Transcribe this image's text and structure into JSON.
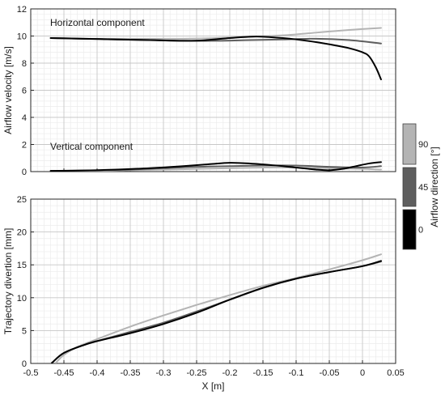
{
  "chart_data": [
    {
      "type": "line",
      "xlabel": "",
      "ylabel": "Airflow velocity [m/s]",
      "xlim": [
        -0.5,
        0.05
      ],
      "ylim": [
        0,
        12
      ],
      "xticks": [
        -0.5,
        -0.45,
        -0.4,
        -0.35,
        -0.3,
        -0.25,
        -0.2,
        -0.15,
        -0.1,
        -0.05,
        0,
        0.05
      ],
      "yticks": [
        0,
        2,
        4,
        6,
        8,
        10,
        12
      ],
      "xtick_labels_shown": false,
      "grid": "major and minor",
      "annotations": [
        "Horizontal component",
        "Vertical component"
      ],
      "series": [
        {
          "group": "horizontal",
          "direction": 90,
          "color": "#b4b4b4",
          "points": [
            [
              -0.47,
              9.85
            ],
            [
              -0.42,
              9.8
            ],
            [
              -0.37,
              9.8
            ],
            [
              -0.32,
              9.8
            ],
            [
              -0.27,
              9.8
            ],
            [
              -0.22,
              9.85
            ],
            [
              -0.17,
              9.95
            ],
            [
              -0.12,
              10.05
            ],
            [
              -0.07,
              10.25
            ],
            [
              -0.02,
              10.45
            ],
            [
              0.028,
              10.6
            ]
          ]
        },
        {
          "group": "horizontal",
          "direction": 45,
          "color": "#5e5e5e",
          "points": [
            [
              -0.47,
              9.85
            ],
            [
              -0.42,
              9.8
            ],
            [
              -0.37,
              9.75
            ],
            [
              -0.32,
              9.7
            ],
            [
              -0.27,
              9.65
            ],
            [
              -0.22,
              9.65
            ],
            [
              -0.17,
              9.7
            ],
            [
              -0.12,
              9.75
            ],
            [
              -0.07,
              9.8
            ],
            [
              -0.02,
              9.7
            ],
            [
              0.028,
              9.45
            ]
          ]
        },
        {
          "group": "horizontal",
          "direction": 0,
          "color": "#000000",
          "points": [
            [
              -0.47,
              9.85
            ],
            [
              -0.42,
              9.8
            ],
            [
              -0.37,
              9.75
            ],
            [
              -0.32,
              9.7
            ],
            [
              -0.27,
              9.65
            ],
            [
              -0.24,
              9.68
            ],
            [
              -0.2,
              9.85
            ],
            [
              -0.17,
              9.95
            ],
            [
              -0.15,
              9.95
            ],
            [
              -0.12,
              9.85
            ],
            [
              -0.1,
              9.75
            ],
            [
              -0.07,
              9.55
            ],
            [
              -0.04,
              9.3
            ],
            [
              -0.02,
              9.1
            ],
            [
              0.0,
              8.8
            ],
            [
              0.01,
              8.5
            ],
            [
              0.02,
              7.7
            ],
            [
              0.028,
              6.8
            ]
          ]
        },
        {
          "group": "vertical",
          "direction": 90,
          "color": "#b4b4b4",
          "points": [
            [
              -0.47,
              0.05
            ],
            [
              -0.4,
              0.05
            ],
            [
              -0.35,
              0.1
            ],
            [
              -0.3,
              0.15
            ],
            [
              -0.25,
              0.2
            ],
            [
              -0.2,
              0.25
            ],
            [
              -0.15,
              0.3
            ],
            [
              -0.1,
              0.3
            ],
            [
              -0.05,
              0.25
            ],
            [
              0.0,
              0.2
            ],
            [
              0.028,
              0.15
            ]
          ]
        },
        {
          "group": "vertical",
          "direction": 45,
          "color": "#5e5e5e",
          "points": [
            [
              -0.47,
              0.05
            ],
            [
              -0.4,
              0.1
            ],
            [
              -0.35,
              0.15
            ],
            [
              -0.3,
              0.25
            ],
            [
              -0.25,
              0.35
            ],
            [
              -0.2,
              0.4
            ],
            [
              -0.15,
              0.45
            ],
            [
              -0.1,
              0.45
            ],
            [
              -0.05,
              0.35
            ],
            [
              0.0,
              0.3
            ],
            [
              0.028,
              0.4
            ]
          ]
        },
        {
          "group": "vertical",
          "direction": 0,
          "color": "#000000",
          "points": [
            [
              -0.47,
              0.05
            ],
            [
              -0.42,
              0.08
            ],
            [
              -0.37,
              0.15
            ],
            [
              -0.32,
              0.25
            ],
            [
              -0.27,
              0.4
            ],
            [
              -0.23,
              0.55
            ],
            [
              -0.2,
              0.65
            ],
            [
              -0.17,
              0.6
            ],
            [
              -0.13,
              0.45
            ],
            [
              -0.1,
              0.3
            ],
            [
              -0.07,
              0.15
            ],
            [
              -0.05,
              0.1
            ],
            [
              -0.03,
              0.2
            ],
            [
              -0.01,
              0.4
            ],
            [
              0.01,
              0.6
            ],
            [
              0.028,
              0.7
            ]
          ]
        }
      ]
    },
    {
      "type": "line",
      "xlabel": "X [m]",
      "ylabel": "Trajectory divertion [mm]",
      "xlim": [
        -0.5,
        0.05
      ],
      "ylim": [
        0,
        25
      ],
      "xticks": [
        -0.5,
        -0.45,
        -0.4,
        -0.35,
        -0.3,
        -0.25,
        -0.2,
        -0.15,
        -0.1,
        -0.05,
        0,
        0.05
      ],
      "xtick_labels": [
        "-0.5",
        "-0.45",
        "-0.4",
        "-0.35",
        "-0.3",
        "-0.25",
        "-0.2",
        "-0.15",
        "-0.1",
        "-0.05",
        "0",
        "0.05"
      ],
      "yticks": [
        0,
        5,
        10,
        15,
        20,
        25
      ],
      "grid": "major and minor",
      "series": [
        {
          "direction": 90,
          "color": "#b4b4b4",
          "points": [
            [
              -0.462,
              0.1
            ],
            [
              -0.45,
              1.3
            ],
            [
              -0.43,
              2.5
            ],
            [
              -0.4,
              3.7
            ],
            [
              -0.35,
              5.6
            ],
            [
              -0.3,
              7.3
            ],
            [
              -0.25,
              8.9
            ],
            [
              -0.2,
              10.4
            ],
            [
              -0.15,
              11.8
            ],
            [
              -0.1,
              13.0
            ],
            [
              -0.05,
              14.3
            ],
            [
              0.0,
              15.7
            ],
            [
              0.028,
              16.6
            ]
          ]
        },
        {
          "direction": 45,
          "color": "#5e5e5e",
          "points": [
            [
              -0.468,
              0.1
            ],
            [
              -0.45,
              1.6
            ],
            [
              -0.42,
              2.8
            ],
            [
              -0.4,
              3.4
            ],
            [
              -0.35,
              4.8
            ],
            [
              -0.3,
              6.2
            ],
            [
              -0.25,
              7.9
            ],
            [
              -0.2,
              9.7
            ],
            [
              -0.15,
              11.5
            ],
            [
              -0.1,
              12.9
            ],
            [
              -0.05,
              13.9
            ],
            [
              0.0,
              14.8
            ],
            [
              0.028,
              15.5
            ]
          ]
        },
        {
          "direction": 0,
          "color": "#000000",
          "points": [
            [
              -0.468,
              0.1
            ],
            [
              -0.45,
              1.6
            ],
            [
              -0.42,
              2.8
            ],
            [
              -0.4,
              3.4
            ],
            [
              -0.35,
              4.6
            ],
            [
              -0.3,
              6.0
            ],
            [
              -0.25,
              7.7
            ],
            [
              -0.2,
              9.7
            ],
            [
              -0.15,
              11.5
            ],
            [
              -0.1,
              12.9
            ],
            [
              -0.05,
              13.9
            ],
            [
              0.0,
              14.8
            ],
            [
              0.028,
              15.6
            ]
          ]
        }
      ]
    }
  ],
  "colorbar": {
    "label": "Airflow direction [°]",
    "entries": [
      {
        "value": "90",
        "color": "#b4b4b4"
      },
      {
        "value": "45",
        "color": "#5e5e5e"
      },
      {
        "value": "0",
        "color": "#000000"
      }
    ]
  }
}
